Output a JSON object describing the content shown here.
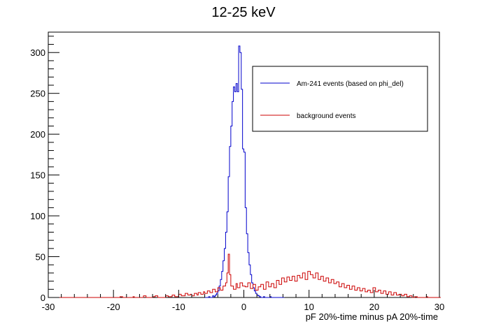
{
  "chart_data": {
    "type": "line",
    "title": "12-25 keV",
    "xlabel": "pF 20%-time minus pA 20%-time",
    "ylabel": "",
    "xlim": [
      -30,
      30
    ],
    "ylim": [
      0,
      325
    ],
    "x_ticks": [
      -30,
      -20,
      -10,
      0,
      10,
      20,
      30
    ],
    "y_ticks": [
      0,
      50,
      100,
      150,
      200,
      250,
      300
    ],
    "x_tick_labels": [
      "-30",
      "-20",
      "-10",
      "0",
      "10",
      "20",
      "30"
    ],
    "y_tick_labels": [
      "0",
      "50",
      "100",
      "150",
      "200",
      "250",
      "300"
    ],
    "grid": false,
    "legend_position": "top-right",
    "bin_width": 0.2,
    "series": [
      {
        "name": "Am-241 events (based on phi_del)",
        "color": "#0000cc",
        "points": [
          [
            -6,
            0
          ],
          [
            -5.4,
            1
          ],
          [
            -5.2,
            0
          ],
          [
            -4.8,
            2
          ],
          [
            -4.6,
            1
          ],
          [
            -4.4,
            3
          ],
          [
            -4.2,
            5
          ],
          [
            -4.0,
            8
          ],
          [
            -3.8,
            14
          ],
          [
            -3.6,
            22
          ],
          [
            -3.4,
            32
          ],
          [
            -3.2,
            45
          ],
          [
            -3.0,
            60
          ],
          [
            -2.8,
            80
          ],
          [
            -2.6,
            105
          ],
          [
            -2.4,
            148
          ],
          [
            -2.2,
            185
          ],
          [
            -2.0,
            210
          ],
          [
            -1.8,
            240
          ],
          [
            -1.6,
            258
          ],
          [
            -1.4,
            252
          ],
          [
            -1.2,
            262
          ],
          [
            -1.0,
            252
          ],
          [
            -0.8,
            308
          ],
          [
            -0.6,
            300
          ],
          [
            -0.4,
            255
          ],
          [
            -0.2,
            182
          ],
          [
            0.0,
            178
          ],
          [
            0.2,
            110
          ],
          [
            0.4,
            78
          ],
          [
            0.6,
            55
          ],
          [
            0.8,
            40
          ],
          [
            1.0,
            28
          ],
          [
            1.2,
            18
          ],
          [
            1.4,
            12
          ],
          [
            1.6,
            8
          ],
          [
            1.8,
            5
          ],
          [
            2.0,
            3
          ],
          [
            2.2,
            2
          ],
          [
            2.4,
            1
          ],
          [
            2.6,
            0
          ],
          [
            3.0,
            1
          ],
          [
            3.2,
            0
          ],
          [
            4.0,
            1
          ],
          [
            4.2,
            0
          ],
          [
            6.0,
            0
          ]
        ]
      },
      {
        "name": "background events",
        "color": "#cc0000",
        "points": [
          [
            -30,
            0
          ],
          [
            -19.0,
            1
          ],
          [
            -18.6,
            0
          ],
          [
            -17.0,
            1
          ],
          [
            -16.8,
            0
          ],
          [
            -15.4,
            2
          ],
          [
            -15.0,
            0
          ],
          [
            -14.0,
            1
          ],
          [
            -13.6,
            2
          ],
          [
            -13.2,
            0
          ],
          [
            -12.0,
            2
          ],
          [
            -11.6,
            1
          ],
          [
            -11.0,
            3
          ],
          [
            -10.6,
            1
          ],
          [
            -10.0,
            4
          ],
          [
            -9.6,
            2
          ],
          [
            -9.0,
            5
          ],
          [
            -8.6,
            3
          ],
          [
            -8.2,
            4
          ],
          [
            -8.0,
            2
          ],
          [
            -7.6,
            5
          ],
          [
            -7.2,
            3
          ],
          [
            -7.0,
            6
          ],
          [
            -6.6,
            4
          ],
          [
            -6.2,
            7
          ],
          [
            -6.0,
            5
          ],
          [
            -5.6,
            8
          ],
          [
            -5.2,
            6
          ],
          [
            -4.8,
            10
          ],
          [
            -4.4,
            7
          ],
          [
            -4.0,
            12
          ],
          [
            -3.6,
            9
          ],
          [
            -3.2,
            14
          ],
          [
            -2.8,
            18
          ],
          [
            -2.6,
            30
          ],
          [
            -2.4,
            53
          ],
          [
            -2.2,
            28
          ],
          [
            -2.0,
            14
          ],
          [
            -1.6,
            10
          ],
          [
            -1.2,
            17
          ],
          [
            -1.0,
            12
          ],
          [
            -0.6,
            18
          ],
          [
            -0.2,
            14
          ],
          [
            0.2,
            13
          ],
          [
            0.6,
            18
          ],
          [
            1.0,
            11
          ],
          [
            1.4,
            16
          ],
          [
            1.8,
            9
          ],
          [
            2.2,
            13
          ],
          [
            2.6,
            16
          ],
          [
            3.0,
            10
          ],
          [
            3.4,
            19
          ],
          [
            3.8,
            13
          ],
          [
            4.2,
            17
          ],
          [
            4.6,
            12
          ],
          [
            5.0,
            21
          ],
          [
            5.4,
            16
          ],
          [
            5.8,
            24
          ],
          [
            6.2,
            19
          ],
          [
            6.6,
            25
          ],
          [
            7.0,
            21
          ],
          [
            7.4,
            26
          ],
          [
            7.8,
            20
          ],
          [
            8.2,
            27
          ],
          [
            8.6,
            24
          ],
          [
            9.0,
            30
          ],
          [
            9.4,
            22
          ],
          [
            9.8,
            32
          ],
          [
            10.2,
            28
          ],
          [
            10.6,
            24
          ],
          [
            11.0,
            30
          ],
          [
            11.4,
            22
          ],
          [
            11.8,
            26
          ],
          [
            12.2,
            20
          ],
          [
            12.6,
            24
          ],
          [
            13.0,
            18
          ],
          [
            13.4,
            22
          ],
          [
            13.8,
            17
          ],
          [
            14.2,
            19
          ],
          [
            14.6,
            13
          ],
          [
            15.0,
            17
          ],
          [
            15.4,
            12
          ],
          [
            15.8,
            15
          ],
          [
            16.2,
            10
          ],
          [
            16.6,
            14
          ],
          [
            17.0,
            9
          ],
          [
            17.4,
            12
          ],
          [
            17.8,
            8
          ],
          [
            18.2,
            11
          ],
          [
            18.6,
            7
          ],
          [
            19.0,
            9
          ],
          [
            19.4,
            6
          ],
          [
            19.8,
            12
          ],
          [
            20.2,
            7
          ],
          [
            20.6,
            9
          ],
          [
            21.0,
            5
          ],
          [
            21.4,
            8
          ],
          [
            21.8,
            4
          ],
          [
            22.2,
            7
          ],
          [
            22.6,
            3
          ],
          [
            23.0,
            6
          ],
          [
            23.4,
            3
          ],
          [
            23.8,
            4
          ],
          [
            24.2,
            2
          ],
          [
            24.6,
            4
          ],
          [
            25.0,
            1
          ],
          [
            25.4,
            2
          ],
          [
            25.8,
            0
          ],
          [
            26.2,
            1
          ],
          [
            26.6,
            0
          ],
          [
            28.0,
            1
          ],
          [
            28.2,
            0
          ],
          [
            30,
            0
          ]
        ]
      }
    ]
  }
}
